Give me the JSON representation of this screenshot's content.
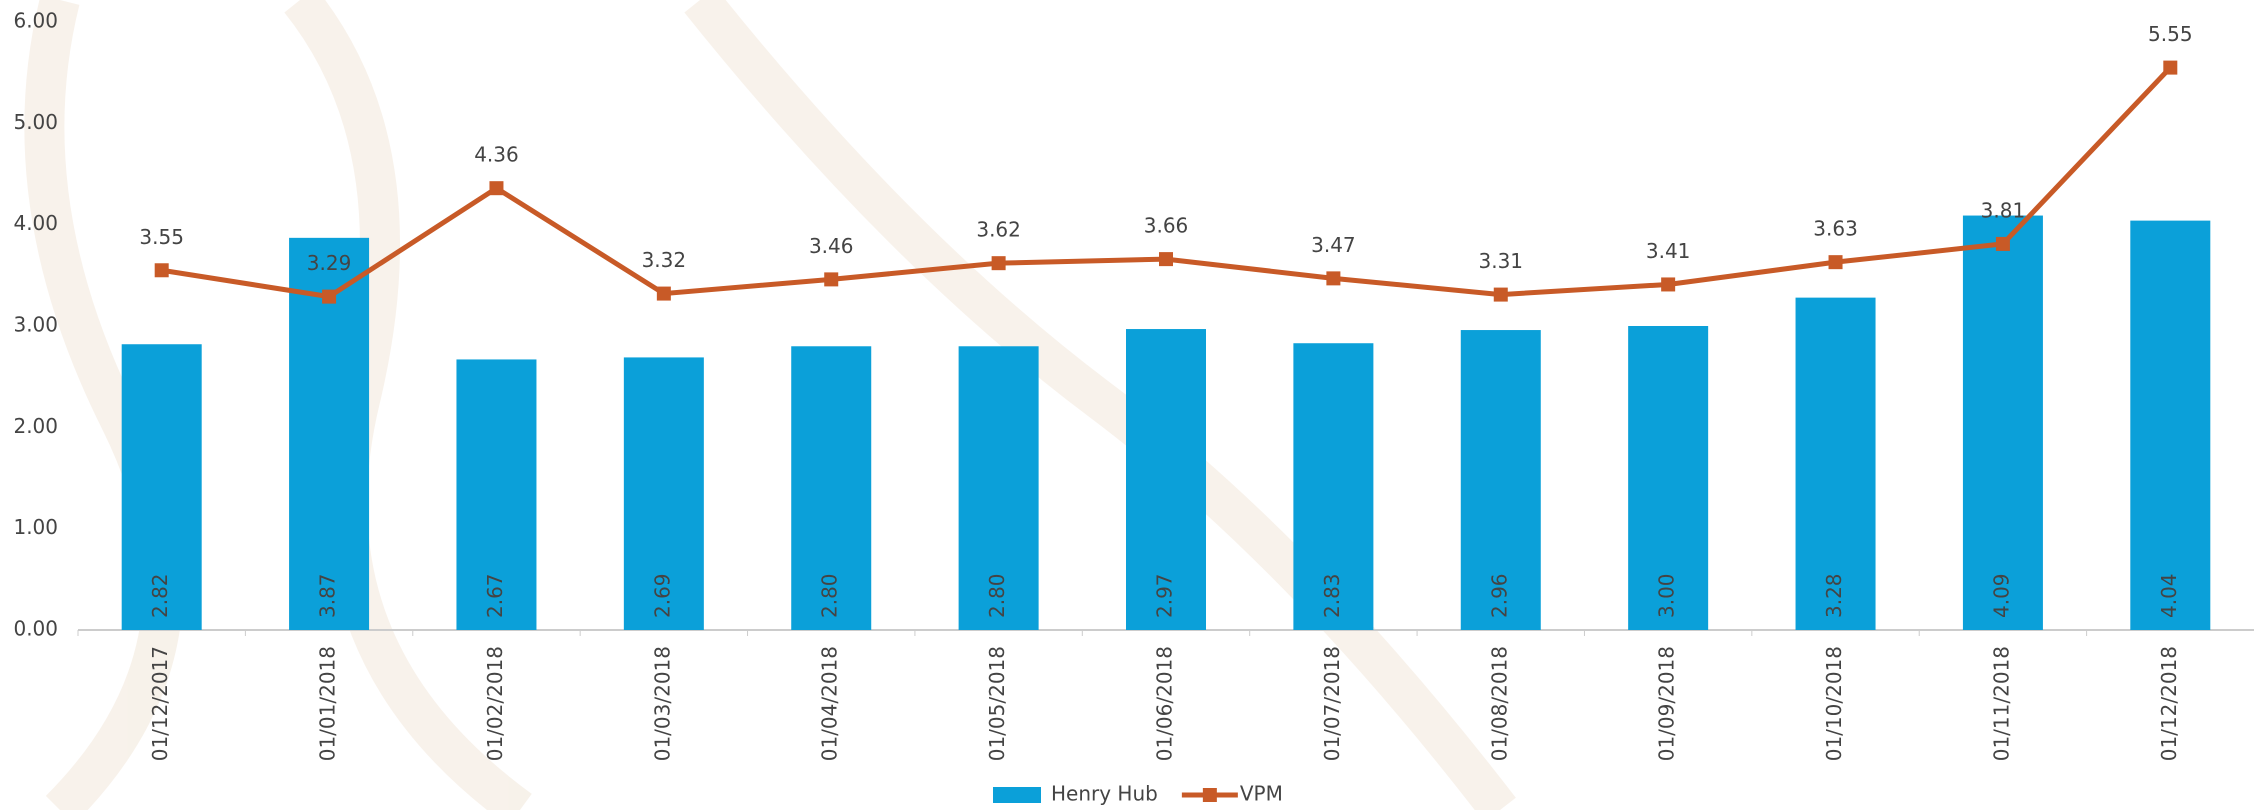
{
  "chart_data": {
    "type": "bar",
    "categories": [
      "01/12/2017",
      "01/01/2018",
      "01/02/2018",
      "01/03/2018",
      "01/04/2018",
      "01/05/2018",
      "01/06/2018",
      "01/07/2018",
      "01/08/2018",
      "01/09/2018",
      "01/10/2018",
      "01/11/2018",
      "01/12/2018"
    ],
    "series": [
      {
        "name": "Henry Hub",
        "type": "bar",
        "color": "#0ba0d9",
        "values": [
          2.82,
          3.87,
          2.67,
          2.69,
          2.8,
          2.8,
          2.97,
          2.83,
          2.96,
          3.0,
          3.28,
          4.09,
          4.04
        ],
        "value_labels": [
          "2.82",
          "3.87",
          "2.67",
          "2.69",
          "2.80",
          "2.80",
          "2.97",
          "2.83",
          "2.96",
          "3.00",
          "3.28",
          "4.09",
          "4.04"
        ]
      },
      {
        "name": "VPM",
        "type": "line",
        "color": "#c85a27",
        "values": [
          3.55,
          3.29,
          4.36,
          3.32,
          3.46,
          3.62,
          3.66,
          3.47,
          3.31,
          3.41,
          3.63,
          3.81,
          5.55
        ]
      }
    ],
    "ylim": [
      0,
      6
    ],
    "yticks": [
      {
        "value": 0,
        "label": "0.00"
      },
      {
        "value": 1,
        "label": "1.00"
      },
      {
        "value": 2,
        "label": "2.00"
      },
      {
        "value": 3,
        "label": "3.00"
      },
      {
        "value": 4,
        "label": "4.00"
      },
      {
        "value": 5,
        "label": "5.00"
      },
      {
        "value": 6,
        "label": "6.00"
      }
    ],
    "grid": false,
    "legend": "bottom"
  }
}
